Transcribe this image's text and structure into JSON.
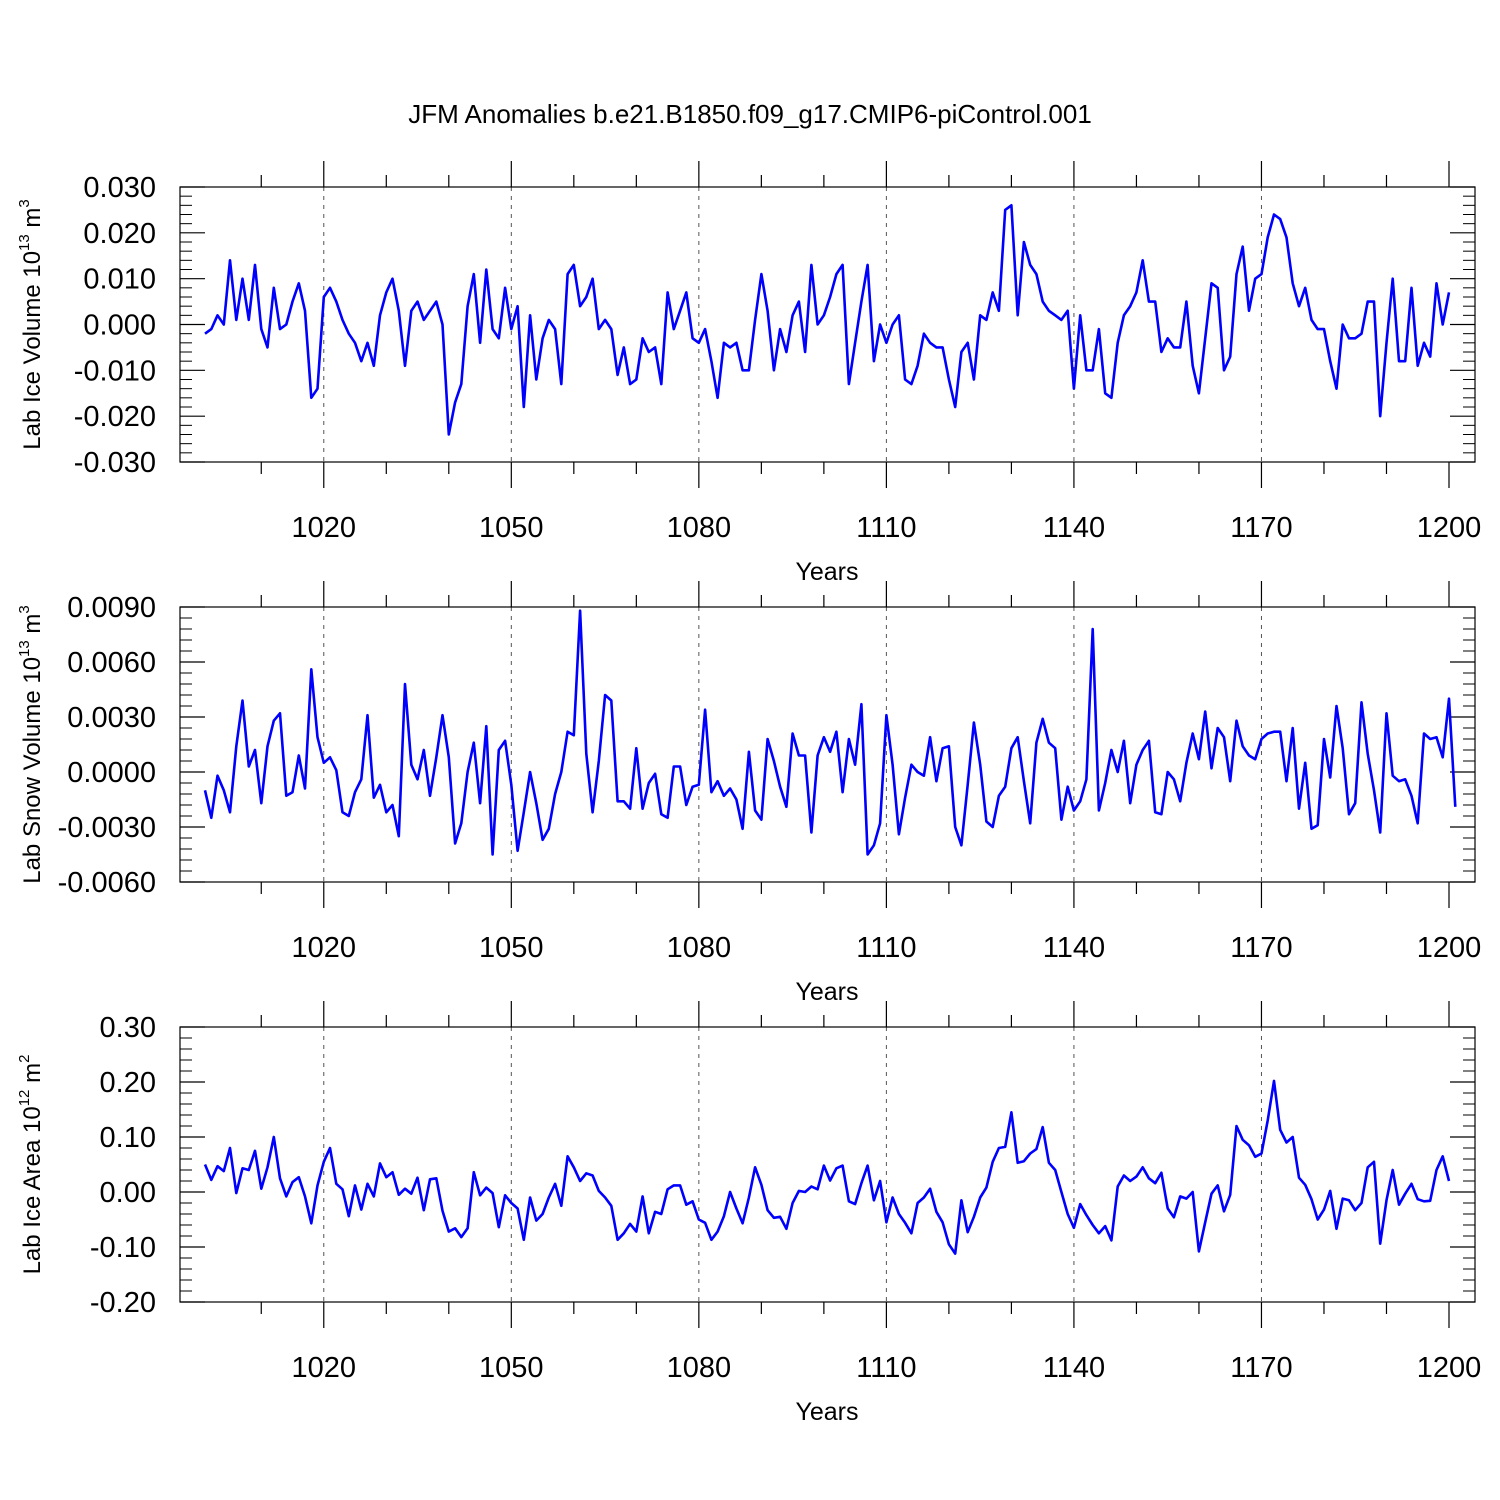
{
  "title": "JFM Anomalies b.e21.B1850.f09_g17.CMIP6-piControl.001",
  "colors": {
    "line": "#0000ff",
    "axis": "#000000",
    "grid": "#555555"
  },
  "chart_data": [
    {
      "type": "line",
      "title": "JFM Anomalies b.e21.B1850.f09_g17.CMIP6-piControl.001",
      "ylabel": {
        "base": "Lab Ice Volume 10",
        "exp": "13",
        "unit": " m",
        "unit_exp": "3"
      },
      "xlabel": "Years",
      "xlim": [
        1001,
        1200
      ],
      "ylim": [
        -0.03,
        0.03
      ],
      "xticks": [
        1020,
        1050,
        1080,
        1110,
        1140,
        1170,
        1200
      ],
      "xtick_labels": [
        "1020",
        "1050",
        "1080",
        "1110",
        "1140",
        "1170",
        "1200"
      ],
      "yticks": [
        -0.03,
        -0.02,
        -0.01,
        0.0,
        0.01,
        0.02,
        0.03
      ],
      "ytick_labels": [
        "-0.030",
        "-0.020",
        "-0.010",
        "0.000",
        "0.010",
        "0.020",
        "0.030"
      ],
      "x_start": 1001,
      "values": [
        -0.002,
        -0.001,
        0.002,
        0.0,
        0.014,
        0.001,
        0.01,
        0.001,
        0.013,
        -0.001,
        -0.005,
        0.008,
        -0.001,
        0.0,
        0.005,
        0.009,
        0.003,
        -0.016,
        -0.014,
        0.006,
        0.008,
        0.005,
        0.001,
        -0.002,
        -0.004,
        -0.008,
        -0.004,
        -0.009,
        0.002,
        0.007,
        0.01,
        0.003,
        -0.009,
        0.003,
        0.005,
        0.001,
        0.003,
        0.005,
        0.0,
        -0.024,
        -0.017,
        -0.013,
        0.004,
        0.011,
        -0.004,
        0.012,
        -0.001,
        -0.003,
        0.008,
        -0.001,
        0.004,
        -0.018,
        0.002,
        -0.012,
        -0.003,
        0.001,
        -0.001,
        -0.013,
        0.011,
        0.013,
        0.004,
        0.006,
        0.01,
        -0.001,
        0.001,
        -0.001,
        -0.011,
        -0.005,
        -0.013,
        -0.012,
        -0.003,
        -0.006,
        -0.005,
        -0.013,
        0.007,
        -0.001,
        0.003,
        0.007,
        -0.003,
        -0.004,
        -0.001,
        -0.008,
        -0.016,
        -0.004,
        -0.005,
        -0.004,
        -0.01,
        -0.01,
        0.001,
        0.011,
        0.003,
        -0.01,
        -0.001,
        -0.006,
        0.002,
        0.005,
        -0.006,
        0.013,
        0.0,
        0.002,
        0.006,
        0.011,
        0.013,
        -0.013,
        -0.004,
        0.005,
        0.013,
        -0.008,
        0.0,
        -0.004,
        0.0,
        0.002,
        -0.012,
        -0.013,
        -0.009,
        -0.002,
        -0.004,
        -0.005,
        -0.005,
        -0.012,
        -0.018,
        -0.006,
        -0.004,
        -0.012,
        0.002,
        0.001,
        0.007,
        0.003,
        0.025,
        0.026,
        0.002,
        0.018,
        0.013,
        0.011,
        0.005,
        0.003,
        0.002,
        0.001,
        0.003,
        -0.014,
        0.002,
        -0.01,
        -0.01,
        -0.001,
        -0.015,
        -0.016,
        -0.004,
        0.002,
        0.004,
        0.007,
        0.014,
        0.005,
        0.005,
        -0.006,
        -0.003,
        -0.005,
        -0.005,
        0.005,
        -0.009,
        -0.015,
        -0.003,
        0.009,
        0.008,
        -0.01,
        -0.007,
        0.011,
        0.017,
        0.003,
        0.01,
        0.011,
        0.019,
        0.024,
        0.023,
        0.019,
        0.009,
        0.004,
        0.008,
        0.001,
        -0.001,
        -0.001,
        -0.008,
        -0.014,
        0.0,
        -0.003,
        -0.003,
        -0.002,
        0.005,
        0.005,
        -0.02,
        -0.004,
        0.01,
        -0.008,
        -0.008,
        0.008,
        -0.009,
        -0.004,
        -0.007,
        0.009,
        0.0,
        0.007
      ]
    },
    {
      "type": "line",
      "ylabel": {
        "base": "Lab Snow Volume 10",
        "exp": "13",
        "unit": " m",
        "unit_exp": "3"
      },
      "xlabel": "Years",
      "xlim": [
        1001,
        1200
      ],
      "ylim": [
        -0.006,
        0.009
      ],
      "xticks": [
        1020,
        1050,
        1080,
        1110,
        1140,
        1170,
        1200
      ],
      "xtick_labels": [
        "1020",
        "1050",
        "1080",
        "1110",
        "1140",
        "1170",
        "1200"
      ],
      "yticks": [
        -0.006,
        -0.003,
        0.0,
        0.003,
        0.006,
        0.009
      ],
      "ytick_labels": [
        "-0.0060",
        "-0.0030",
        "0.0000",
        "0.0030",
        "0.0060",
        "0.0090"
      ],
      "x_start": 1001,
      "values": [
        -0.001,
        -0.0025,
        -0.0002,
        -0.001,
        -0.0022,
        0.0014,
        0.0039,
        0.0003,
        0.0012,
        -0.0017,
        0.0014,
        0.0028,
        0.0032,
        -0.0013,
        -0.0011,
        0.0009,
        -0.0009,
        0.0056,
        0.0019,
        0.0005,
        0.0008,
        0.0001,
        -0.0022,
        -0.0024,
        -0.0011,
        -0.0004,
        0.0031,
        -0.0014,
        -0.0007,
        -0.0022,
        -0.0018,
        -0.0035,
        0.0048,
        0.0004,
        -0.0004,
        0.0012,
        -0.0013,
        0.0008,
        0.0031,
        0.0008,
        -0.0039,
        -0.0028,
        0.0,
        0.0016,
        -0.0017,
        0.0025,
        -0.0045,
        0.0012,
        0.0017,
        -0.0007,
        -0.0043,
        -0.0022,
        0.0,
        -0.0017,
        -0.0037,
        -0.0031,
        -0.0012,
        0.0,
        0.0022,
        0.002,
        0.0088,
        0.001,
        -0.0022,
        0.0006,
        0.0042,
        0.0039,
        -0.0016,
        -0.0016,
        -0.002,
        0.0013,
        -0.002,
        -0.0006,
        -0.0001,
        -0.0023,
        -0.0025,
        0.0003,
        0.0003,
        -0.0018,
        -0.0008,
        -0.0007,
        0.0034,
        -0.0011,
        -0.0005,
        -0.0013,
        -0.0009,
        -0.0015,
        -0.0031,
        0.0011,
        -0.0021,
        -0.0026,
        0.0018,
        0.0006,
        -0.0008,
        -0.0019,
        0.0021,
        0.0009,
        0.0009,
        -0.0033,
        0.0009,
        0.0019,
        0.0011,
        0.0022,
        -0.0011,
        0.0018,
        0.0004,
        0.0037,
        -0.0045,
        -0.004,
        -0.0028,
        0.0031,
        0.0004,
        -0.0034,
        -0.0014,
        0.0004,
        0.0,
        -0.0002,
        0.0019,
        -0.0005,
        0.0013,
        0.0014,
        -0.003,
        -0.004,
        -0.0007,
        0.0027,
        0.0004,
        -0.0027,
        -0.003,
        -0.0013,
        -0.0008,
        0.0013,
        0.0019,
        -0.0005,
        -0.0028,
        0.0016,
        0.0029,
        0.0016,
        0.0013,
        -0.0026,
        -0.0008,
        -0.0021,
        -0.0016,
        -0.0004,
        0.0078,
        -0.0021,
        -0.0006,
        0.0012,
        0.0,
        0.0017,
        -0.0017,
        0.0004,
        0.0012,
        0.0017,
        -0.0022,
        -0.0023,
        0.0,
        -0.0004,
        -0.0016,
        0.0005,
        0.0021,
        0.0007,
        0.0033,
        0.0002,
        0.0024,
        0.0019,
        -0.0005,
        0.0028,
        0.0014,
        0.0009,
        0.0007,
        0.0018,
        0.0021,
        0.0022,
        0.0022,
        -0.0005,
        0.0024,
        -0.002,
        0.0005,
        -0.0031,
        -0.0029,
        0.0018,
        -0.0003,
        0.0036,
        0.0013,
        -0.0023,
        -0.0017,
        0.0038,
        0.001,
        -0.001,
        -0.0033,
        0.0032,
        -0.0002,
        -0.0005,
        -0.0004,
        -0.0013,
        -0.0028,
        0.0021,
        0.0018,
        0.0019,
        0.0008,
        0.004,
        -0.0019
      ]
    },
    {
      "type": "line",
      "ylabel": {
        "base": "Lab Ice Area 10",
        "exp": "12",
        "unit": " m",
        "unit_exp": "2"
      },
      "xlabel": "Years",
      "xlim": [
        1001,
        1200
      ],
      "ylim": [
        -0.2,
        0.3
      ],
      "xticks": [
        1020,
        1050,
        1080,
        1110,
        1140,
        1170,
        1200
      ],
      "xtick_labels": [
        "1020",
        "1050",
        "1080",
        "1110",
        "1140",
        "1170",
        "1200"
      ],
      "yticks": [
        -0.2,
        -0.1,
        0.0,
        0.1,
        0.2,
        0.3
      ],
      "ytick_labels": [
        "-0.20",
        "-0.10",
        "0.00",
        "0.10",
        "0.20",
        "0.30"
      ],
      "x_start": 1001,
      "values": [
        0.05,
        0.022,
        0.047,
        0.038,
        0.08,
        -0.002,
        0.043,
        0.04,
        0.075,
        0.006,
        0.045,
        0.1,
        0.025,
        -0.008,
        0.018,
        0.027,
        -0.008,
        -0.057,
        0.012,
        0.055,
        0.08,
        0.015,
        0.005,
        -0.044,
        0.012,
        -0.032,
        0.015,
        -0.008,
        0.052,
        0.027,
        0.036,
        -0.005,
        0.006,
        -0.003,
        0.026,
        -0.033,
        0.023,
        0.025,
        -0.034,
        -0.072,
        -0.066,
        -0.082,
        -0.066,
        0.036,
        -0.006,
        0.008,
        -0.002,
        -0.064,
        -0.006,
        -0.02,
        -0.03,
        -0.087,
        -0.01,
        -0.052,
        -0.04,
        -0.01,
        0.015,
        -0.025,
        0.065,
        0.045,
        0.02,
        0.034,
        0.03,
        0.002,
        -0.01,
        -0.025,
        -0.087,
        -0.075,
        -0.058,
        -0.072,
        -0.008,
        -0.075,
        -0.036,
        -0.04,
        0.005,
        0.012,
        0.012,
        -0.023,
        -0.017,
        -0.05,
        -0.056,
        -0.087,
        -0.072,
        -0.044,
        0.0,
        -0.03,
        -0.057,
        -0.01,
        0.045,
        0.013,
        -0.033,
        -0.047,
        -0.045,
        -0.067,
        -0.02,
        0.002,
        0.0,
        0.01,
        0.005,
        0.048,
        0.021,
        0.043,
        0.048,
        -0.017,
        -0.022,
        0.016,
        0.048,
        -0.015,
        0.02,
        -0.055,
        -0.01,
        -0.04,
        -0.056,
        -0.075,
        -0.02,
        -0.01,
        0.006,
        -0.036,
        -0.055,
        -0.095,
        -0.112,
        -0.015,
        -0.073,
        -0.045,
        -0.01,
        0.008,
        0.055,
        0.08,
        0.082,
        0.145,
        0.053,
        0.056,
        0.07,
        0.078,
        0.118,
        0.053,
        0.04,
        0.0,
        -0.04,
        -0.065,
        -0.022,
        -0.042,
        -0.06,
        -0.075,
        -0.062,
        -0.088,
        0.01,
        0.03,
        0.02,
        0.028,
        0.045,
        0.025,
        0.016,
        0.035,
        -0.03,
        -0.046,
        -0.008,
        -0.012,
        0.0,
        -0.108,
        -0.055,
        -0.003,
        0.012,
        -0.035,
        -0.005,
        0.12,
        0.095,
        0.085,
        0.064,
        0.07,
        0.13,
        0.202,
        0.113,
        0.09,
        0.1,
        0.026,
        0.013,
        -0.013,
        -0.05,
        -0.032,
        0.002,
        -0.067,
        -0.012,
        -0.015,
        -0.033,
        -0.02,
        0.045,
        0.055,
        -0.094,
        -0.015,
        0.04,
        -0.023,
        -0.003,
        0.015,
        -0.013,
        -0.017,
        -0.016,
        0.04,
        0.065,
        0.02
      ]
    }
  ]
}
